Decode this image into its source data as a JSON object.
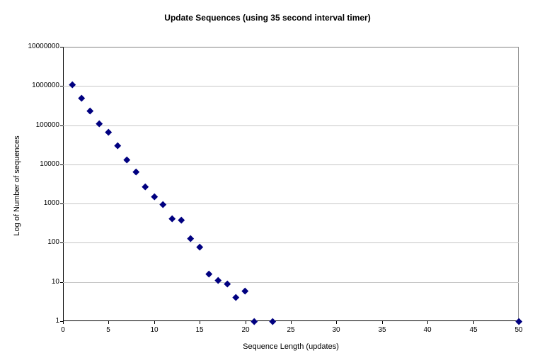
{
  "chart_data": {
    "type": "scatter",
    "title": "Update Sequences (using 35 second interval timer)",
    "xlabel": "Sequence Length (updates)",
    "ylabel": "Log of Number of sequences",
    "legend": "none",
    "grid": "horizontal-major",
    "y_scale": "log10",
    "xlim": [
      0,
      50
    ],
    "ylim": [
      1,
      10000000
    ],
    "x_ticks": [
      0,
      5,
      10,
      15,
      20,
      25,
      30,
      35,
      40,
      45,
      50
    ],
    "y_ticks": [
      "1",
      "10",
      "100",
      "1000",
      "10000",
      "100000",
      "1000000",
      "10000000"
    ],
    "series": [
      {
        "marker": "diamond",
        "color": "#000080",
        "points": [
          [
            1,
            1100000
          ],
          [
            2,
            500000
          ],
          [
            3,
            230000
          ],
          [
            4,
            110000
          ],
          [
            5,
            68000
          ],
          [
            6,
            30000
          ],
          [
            7,
            13000
          ],
          [
            8,
            6600
          ],
          [
            9,
            2700
          ],
          [
            10,
            1500
          ],
          [
            11,
            950
          ],
          [
            12,
            420
          ],
          [
            13,
            390
          ],
          [
            14,
            130
          ],
          [
            15,
            80
          ],
          [
            16,
            16
          ],
          [
            17,
            11
          ],
          [
            18,
            9
          ],
          [
            19,
            4
          ],
          [
            20,
            6
          ],
          [
            21,
            1
          ],
          [
            23,
            1
          ],
          [
            50,
            1
          ]
        ]
      }
    ],
    "colors": {
      "background": "#ffffff",
      "gridline": "#c6c6c6",
      "plot_border": "#848484",
      "axis": "#000000",
      "marker": "#000080",
      "text": "#000000"
    }
  }
}
